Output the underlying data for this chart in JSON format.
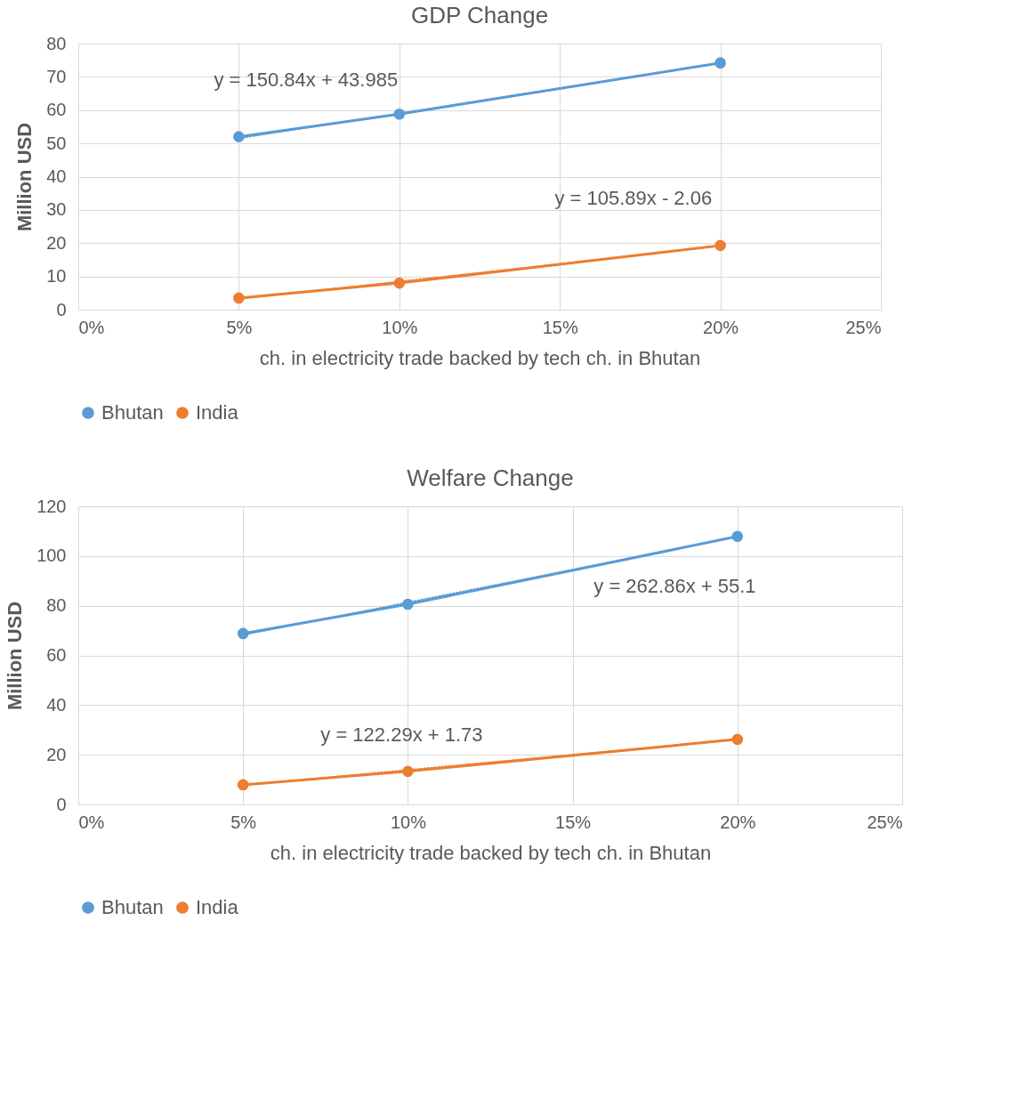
{
  "chart_data": [
    {
      "type": "line",
      "title": "GDP Change",
      "xlabel": "ch. in electricity trade backed by tech ch. in Bhutan",
      "ylabel": "Million USD",
      "xlim": [
        0,
        0.25
      ],
      "xticks": [
        {
          "value": 0,
          "label": "0%"
        },
        {
          "value": 0.05,
          "label": "5%"
        },
        {
          "value": 0.1,
          "label": "10%"
        },
        {
          "value": 0.15,
          "label": "15%"
        },
        {
          "value": 0.2,
          "label": "20%"
        },
        {
          "value": 0.25,
          "label": "25%"
        }
      ],
      "ylim": [
        0,
        80
      ],
      "yticks": [
        0,
        10,
        20,
        30,
        40,
        50,
        60,
        70,
        80
      ],
      "grid": true,
      "legend": "bottom",
      "marker": "circle",
      "line_style": "solid",
      "series": [
        {
          "name": "Bhutan",
          "color": "#5b9bd5",
          "x": [
            0.05,
            0.1,
            0.2
          ],
          "values": [
            52,
            58.8,
            74.2
          ]
        },
        {
          "name": "India",
          "color": "#ed7d31",
          "x": [
            0.05,
            0.1,
            0.2
          ],
          "values": [
            3.5,
            8,
            19.3
          ]
        },
        {
          "type": "line",
          "color": "#5b9bd5",
          "x": [
            0.05,
            0.2
          ],
          "values": [
            51.5,
            74.2
          ],
          "line_style": "dotted",
          "marker": "none"
        },
        {
          "type": "line",
          "color": "#ed7d31",
          "x": [
            0.05,
            0.2
          ],
          "values": [
            3.2,
            19.1
          ],
          "line_style": "dotted",
          "marker": "none"
        }
      ],
      "annotations": [
        "y = 150.84x + 43.985",
        "y = 105.89x - 2.06"
      ]
    },
    {
      "type": "line",
      "title": "Welfare Change",
      "xlabel": "ch. in electricity trade backed by tech ch. in Bhutan",
      "ylabel": "Million USD",
      "xlim": [
        0,
        0.25
      ],
      "xticks": [
        {
          "value": 0,
          "label": "0%"
        },
        {
          "value": 0.05,
          "label": "5%"
        },
        {
          "value": 0.1,
          "label": "10%"
        },
        {
          "value": 0.15,
          "label": "15%"
        },
        {
          "value": 0.2,
          "label": "20%"
        },
        {
          "value": 0.25,
          "label": "25%"
        }
      ],
      "ylim": [
        0,
        120
      ],
      "yticks": [
        0,
        20,
        40,
        60,
        80,
        100,
        120
      ],
      "grid": true,
      "legend": "bottom",
      "marker": "circle",
      "line_style": "solid",
      "series": [
        {
          "name": "Bhutan",
          "color": "#5b9bd5",
          "x": [
            0.05,
            0.1,
            0.2
          ],
          "values": [
            68.8,
            80.6,
            107.9
          ]
        },
        {
          "name": "India",
          "color": "#ed7d31",
          "x": [
            0.05,
            0.1,
            0.2
          ],
          "values": [
            7.9,
            13.3,
            26.2
          ]
        },
        {
          "type": "line",
          "color": "#5b9bd5",
          "x": [
            0.05,
            0.2
          ],
          "values": [
            68.2,
            107.7
          ],
          "line_style": "dotted",
          "marker": "none"
        },
        {
          "type": "line",
          "color": "#ed7d31",
          "x": [
            0.05,
            0.2
          ],
          "values": [
            7.8,
            26.2
          ],
          "line_style": "dotted",
          "marker": "none"
        }
      ],
      "annotations": [
        "y = 262.86x + 55.1",
        "y = 122.29x + 1.73"
      ]
    }
  ]
}
